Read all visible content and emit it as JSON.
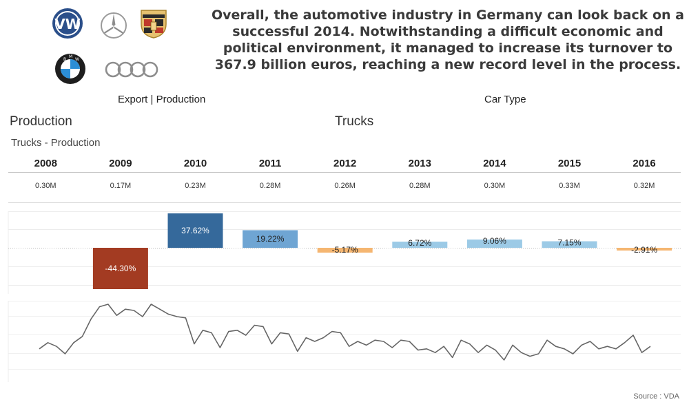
{
  "headline": [
    "Overall, the automotive industry in Germany can look back on a",
    "successful 2014. Notwithstanding a difficult economic and",
    "political environment, it managed to increase its turnover to",
    "367.9 billion euros, reaching a new record level in the process."
  ],
  "logos": {
    "vw": "VW",
    "bmw_letters": [
      "B",
      "M",
      "W"
    ]
  },
  "controls": {
    "export_label": "Export | Production",
    "export_value": "Production",
    "type_label": "Car Type",
    "type_value": "Trucks"
  },
  "chart_data": {
    "type": "bar",
    "title": "Trucks - Production",
    "categories": [
      "2008",
      "2009",
      "2010",
      "2011",
      "2012",
      "2013",
      "2014",
      "2015",
      "2016"
    ],
    "production_labels": [
      "0.30M",
      "0.17M",
      "0.23M",
      "0.28M",
      "0.26M",
      "0.28M",
      "0.30M",
      "0.33M",
      "0.32M"
    ],
    "series": [
      {
        "values": [
          null,
          -44.3,
          37.62,
          19.22,
          -5.17,
          6.72,
          9.06,
          7.15,
          -2.91
        ]
      }
    ],
    "value_labels": [
      "",
      "-44.30%",
      "37.62%",
      "19.22%",
      "-5.17%",
      "6.72%",
      "9.06%",
      "7.15%",
      "-2.91%"
    ],
    "ylim": [
      -44.3,
      37.62
    ],
    "grid": true,
    "colors": {
      "strong_neg": "#a33b22",
      "strong_pos": "#35699b",
      "mid_pos": "#6fa5d3",
      "light_pos": "#9ccae6",
      "light_neg": "#f5b671"
    },
    "monthly_line": {
      "type": "line",
      "color": "#666666",
      "values": [
        48,
        53,
        50,
        44,
        53,
        58,
        72,
        82,
        84,
        75,
        80,
        79,
        74,
        84,
        80,
        76,
        74,
        73,
        52,
        63,
        61,
        49,
        62,
        63,
        59,
        67,
        66,
        52,
        61,
        60,
        46,
        57,
        54,
        57,
        62,
        61,
        50,
        54,
        51,
        55,
        54,
        49,
        55,
        54,
        47,
        48,
        45,
        50,
        41,
        55,
        52,
        45,
        51,
        47,
        39,
        51,
        45,
        42,
        44,
        55,
        50,
        48,
        44,
        51,
        54,
        48,
        50,
        48,
        53,
        59,
        45,
        50
      ]
    }
  },
  "source": "Source : VDA"
}
